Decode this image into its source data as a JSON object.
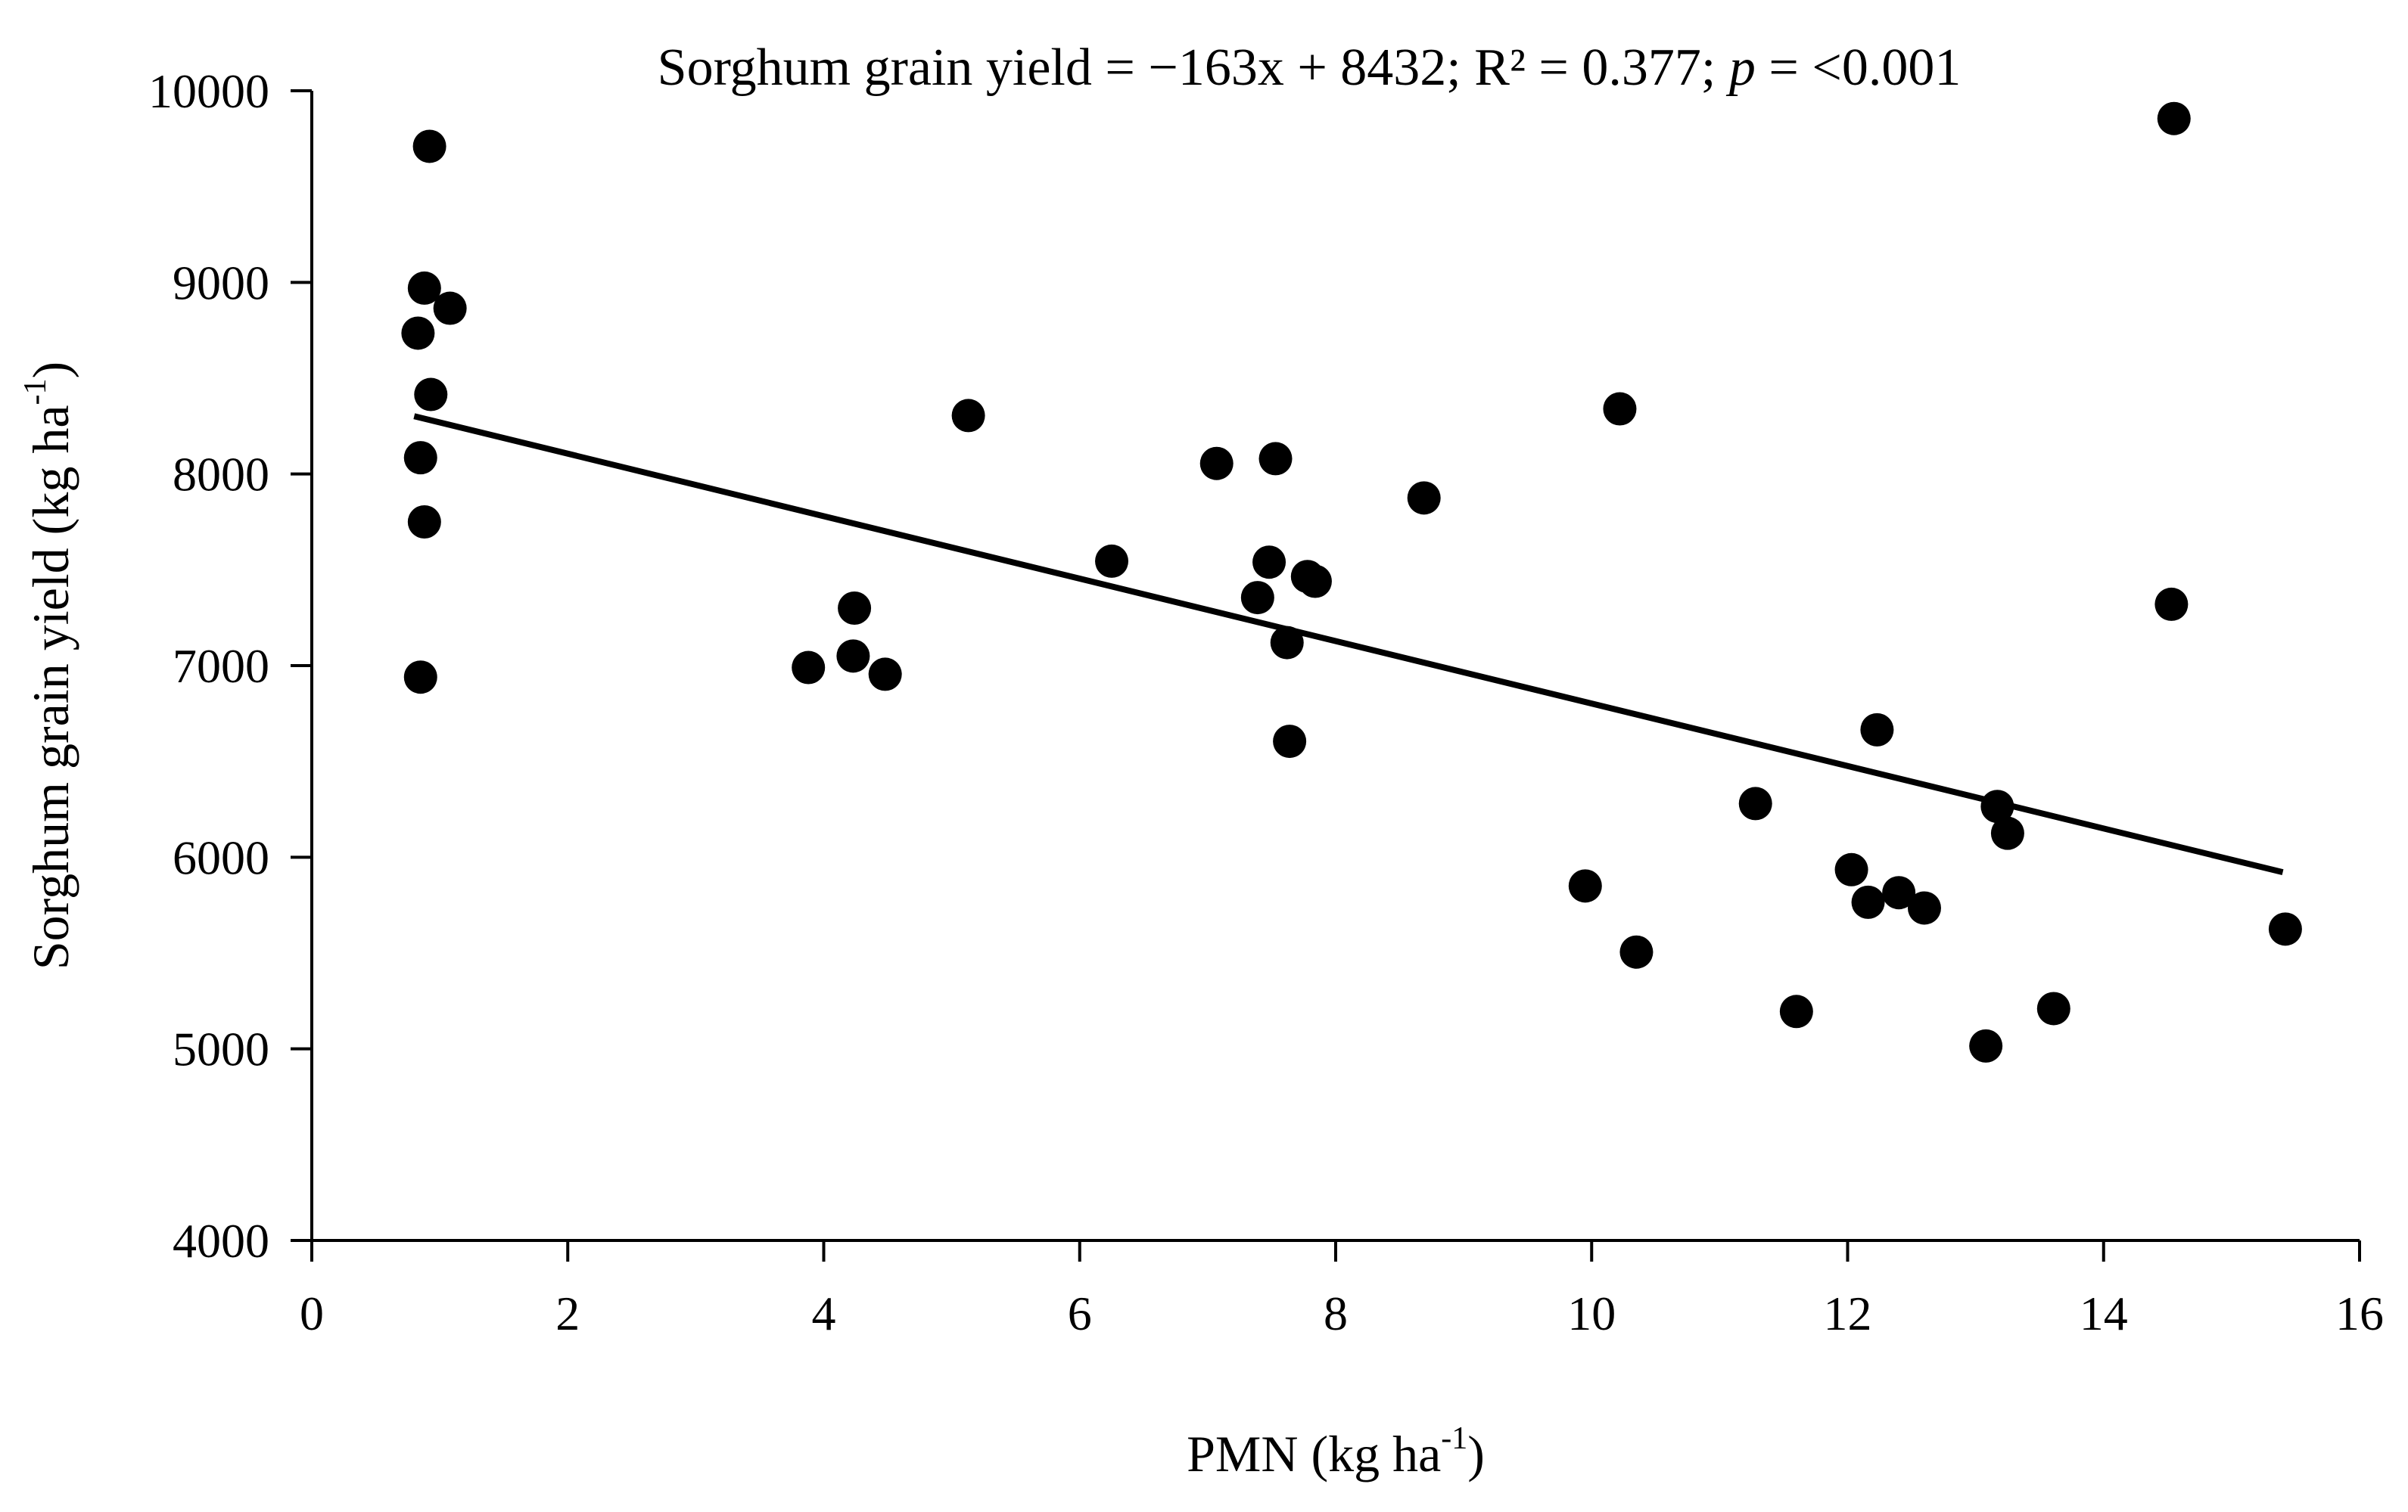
{
  "chart_data": {
    "type": "scatter",
    "title": "",
    "annotation": {
      "prefix": "Sorghum grain yield = −163x + 8432; R² = 0.377; ",
      "p_symbol": "p",
      "suffix": " = <0.001"
    },
    "xlabel": {
      "text": "PMN (kg ha",
      "sup": "-1",
      "close": ")"
    },
    "ylabel": {
      "text": "Sorghum grain yield (kg ha",
      "sup": "-1",
      "close": ")"
    },
    "xlim": [
      0,
      16
    ],
    "ylim": [
      4000,
      10000
    ],
    "xticks": [
      0,
      2,
      4,
      6,
      8,
      10,
      12,
      14,
      16
    ],
    "yticks": [
      4000,
      5000,
      6000,
      7000,
      8000,
      9000,
      10000
    ],
    "grid": false,
    "trendline": {
      "slope": -163,
      "intercept": 8432,
      "x_range": [
        0.8,
        15.4
      ]
    },
    "points": [
      {
        "x": 0.92,
        "y": 9710
      },
      {
        "x": 0.88,
        "y": 8970
      },
      {
        "x": 1.08,
        "y": 8865
      },
      {
        "x": 0.83,
        "y": 8735
      },
      {
        "x": 0.93,
        "y": 8415
      },
      {
        "x": 0.85,
        "y": 8085
      },
      {
        "x": 0.88,
        "y": 7750
      },
      {
        "x": 0.85,
        "y": 6940
      },
      {
        "x": 3.88,
        "y": 6990
      },
      {
        "x": 4.24,
        "y": 7300
      },
      {
        "x": 4.23,
        "y": 7050
      },
      {
        "x": 4.48,
        "y": 6955
      },
      {
        "x": 5.13,
        "y": 8305
      },
      {
        "x": 6.25,
        "y": 7545
      },
      {
        "x": 7.07,
        "y": 8055
      },
      {
        "x": 7.53,
        "y": 8080
      },
      {
        "x": 7.48,
        "y": 7540
      },
      {
        "x": 7.39,
        "y": 7355
      },
      {
        "x": 7.78,
        "y": 7465
      },
      {
        "x": 7.84,
        "y": 7440
      },
      {
        "x": 7.62,
        "y": 7120
      },
      {
        "x": 7.64,
        "y": 6605
      },
      {
        "x": 8.69,
        "y": 7875
      },
      {
        "x": 10.22,
        "y": 8340
      },
      {
        "x": 9.95,
        "y": 5850
      },
      {
        "x": 10.35,
        "y": 5505
      },
      {
        "x": 11.28,
        "y": 6280
      },
      {
        "x": 11.6,
        "y": 5195
      },
      {
        "x": 12.23,
        "y": 6665
      },
      {
        "x": 12.03,
        "y": 5935
      },
      {
        "x": 12.16,
        "y": 5765
      },
      {
        "x": 12.4,
        "y": 5815
      },
      {
        "x": 12.6,
        "y": 5735
      },
      {
        "x": 13.17,
        "y": 6265
      },
      {
        "x": 13.25,
        "y": 6125
      },
      {
        "x": 13.08,
        "y": 5015
      },
      {
        "x": 13.61,
        "y": 5210
      },
      {
        "x": 14.55,
        "y": 9855
      },
      {
        "x": 14.53,
        "y": 7320
      },
      {
        "x": 15.42,
        "y": 5625
      }
    ]
  }
}
